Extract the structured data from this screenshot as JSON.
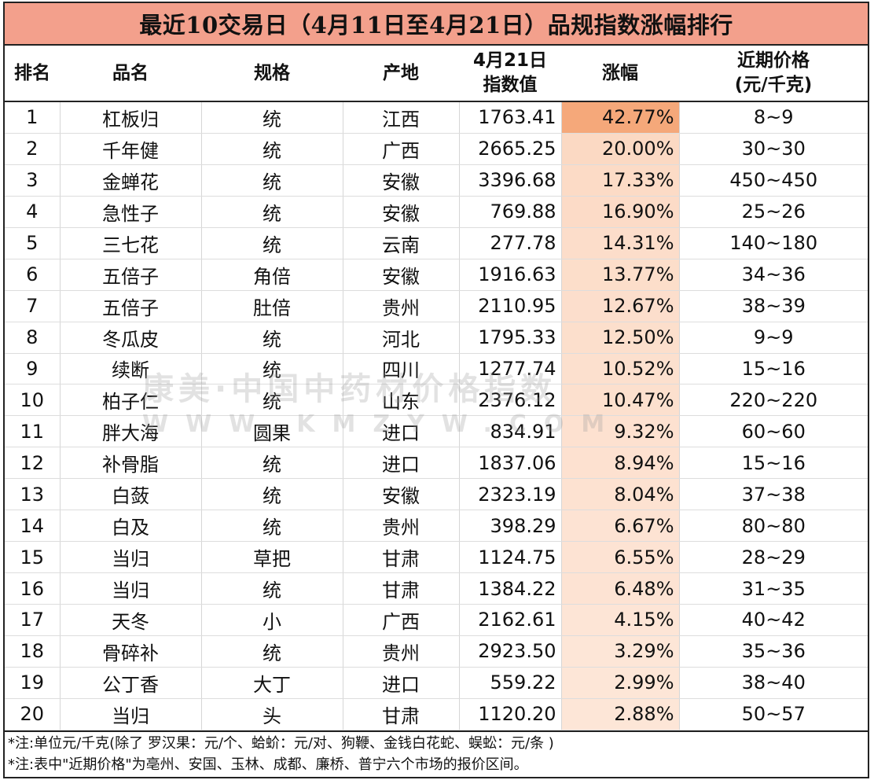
{
  "title": "最近10交易日（4月11日至4月21日）品规指数涨幅排行",
  "headers": {
    "rank": "排名",
    "name": "品名",
    "spec": "规格",
    "origin": "产地",
    "index_line1": "4月21日",
    "index_line2": "指数值",
    "change": "涨幅",
    "price_line1": "近期价格",
    "price_line2": "(元/千克)"
  },
  "rows": [
    {
      "rank": "1",
      "name": "杠板归",
      "spec": "统",
      "origin": "江西",
      "index": "1763.41",
      "change": "42.77%",
      "change_value": 42.77,
      "price": "8~9"
    },
    {
      "rank": "2",
      "name": "千年健",
      "spec": "统",
      "origin": "广西",
      "index": "2665.25",
      "change": "20.00%",
      "change_value": 20.0,
      "price": "30~30"
    },
    {
      "rank": "3",
      "name": "金蝉花",
      "spec": "统",
      "origin": "安徽",
      "index": "3396.68",
      "change": "17.33%",
      "change_value": 17.33,
      "price": "450~450"
    },
    {
      "rank": "4",
      "name": "急性子",
      "spec": "统",
      "origin": "安徽",
      "index": "769.88",
      "change": "16.90%",
      "change_value": 16.9,
      "price": "25~26"
    },
    {
      "rank": "5",
      "name": "三七花",
      "spec": "统",
      "origin": "云南",
      "index": "277.78",
      "change": "14.31%",
      "change_value": 14.31,
      "price": "140~180"
    },
    {
      "rank": "6",
      "name": "五倍子",
      "spec": "角倍",
      "origin": "安徽",
      "index": "1916.63",
      "change": "13.77%",
      "change_value": 13.77,
      "price": "34~36"
    },
    {
      "rank": "7",
      "name": "五倍子",
      "spec": "肚倍",
      "origin": "贵州",
      "index": "2110.95",
      "change": "12.67%",
      "change_value": 12.67,
      "price": "38~39"
    },
    {
      "rank": "8",
      "name": "冬瓜皮",
      "spec": "统",
      "origin": "河北",
      "index": "1795.33",
      "change": "12.50%",
      "change_value": 12.5,
      "price": "9~9"
    },
    {
      "rank": "9",
      "name": "续断",
      "spec": "统",
      "origin": "四川",
      "index": "1277.74",
      "change": "10.52%",
      "change_value": 10.52,
      "price": "15~16"
    },
    {
      "rank": "10",
      "name": "柏子仁",
      "spec": "统",
      "origin": "山东",
      "index": "2376.12",
      "change": "10.47%",
      "change_value": 10.47,
      "price": "220~220"
    },
    {
      "rank": "11",
      "name": "胖大海",
      "spec": "圆果",
      "origin": "进口",
      "index": "834.91",
      "change": "9.32%",
      "change_value": 9.32,
      "price": "60~60"
    },
    {
      "rank": "12",
      "name": "补骨脂",
      "spec": "统",
      "origin": "进口",
      "index": "1837.06",
      "change": "8.94%",
      "change_value": 8.94,
      "price": "15~16"
    },
    {
      "rank": "13",
      "name": "白蔹",
      "spec": "统",
      "origin": "安徽",
      "index": "2323.19",
      "change": "8.04%",
      "change_value": 8.04,
      "price": "37~38"
    },
    {
      "rank": "14",
      "name": "白及",
      "spec": "统",
      "origin": "贵州",
      "index": "398.29",
      "change": "6.67%",
      "change_value": 6.67,
      "price": "80~80"
    },
    {
      "rank": "15",
      "name": "当归",
      "spec": "草把",
      "origin": "甘肃",
      "index": "1124.75",
      "change": "6.55%",
      "change_value": 6.55,
      "price": "28~29"
    },
    {
      "rank": "16",
      "name": "当归",
      "spec": "统",
      "origin": "甘肃",
      "index": "1384.22",
      "change": "6.48%",
      "change_value": 6.48,
      "price": "31~35"
    },
    {
      "rank": "17",
      "name": "天冬",
      "spec": "小",
      "origin": "广西",
      "index": "2162.61",
      "change": "4.15%",
      "change_value": 4.15,
      "price": "40~42"
    },
    {
      "rank": "18",
      "name": "骨碎补",
      "spec": "统",
      "origin": "贵州",
      "index": "2923.50",
      "change": "3.29%",
      "change_value": 3.29,
      "price": "35~36"
    },
    {
      "rank": "19",
      "name": "公丁香",
      "spec": "大丁",
      "origin": "进口",
      "index": "559.22",
      "change": "2.99%",
      "change_value": 2.99,
      "price": "38~40"
    },
    {
      "rank": "20",
      "name": "当归",
      "spec": "头",
      "origin": "甘肃",
      "index": "1120.20",
      "change": "2.88%",
      "change_value": 2.88,
      "price": "50~57"
    }
  ],
  "notes": [
    "*注:单位元/千克(除了 罗汉果：元/个、蛤蚧：元/对、狗鞭、金钱白花蛇、蜈蚣：元/条 )",
    "*注:表中\"近期价格\"为亳州、安国、玉林、成都、廉桥、普宁六个市场的报价区间。"
  ],
  "watermark": {
    "main": "康美·中国中药材价格指数",
    "sub": "WWW.KMZYW.COM"
  },
  "colors": {
    "title_bg": "#f3a08c",
    "heat_high": "#f5a87a",
    "heat_low": "#fff4ec"
  }
}
